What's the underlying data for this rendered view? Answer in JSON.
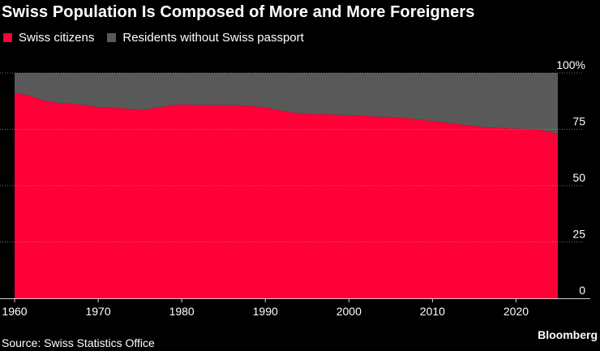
{
  "title": "Swiss Population Is Composed of More and More Foreigners",
  "legend": [
    {
      "label": "Swiss citizens",
      "color": "#ff0037"
    },
    {
      "label": "Residents without Swiss passport",
      "color": "#595959"
    }
  ],
  "source": "Source: Swiss Statistics Office",
  "brand": "Bloomberg",
  "chart_data": {
    "type": "area",
    "stacked": true,
    "title": "Swiss Population Is Composed of More and More Foreigners",
    "xlabel": "",
    "ylabel": "",
    "xlim": [
      1960,
      2025
    ],
    "ylim": [
      0,
      100
    ],
    "x_ticks": [
      1960,
      1970,
      1980,
      1990,
      2000,
      2010,
      2020
    ],
    "y_ticks": [
      0,
      25,
      50,
      75,
      100
    ],
    "y_tick_labels": [
      "0",
      "25",
      "50",
      "75",
      "100%"
    ],
    "y_axis_position": "right",
    "grid": "horizontal",
    "legend_position": "top-left",
    "x": [
      1960,
      1961,
      1962,
      1963,
      1964,
      1965,
      1966,
      1967,
      1968,
      1969,
      1970,
      1971,
      1972,
      1973,
      1974,
      1975,
      1976,
      1977,
      1978,
      1979,
      1980,
      1981,
      1982,
      1983,
      1984,
      1985,
      1986,
      1987,
      1988,
      1989,
      1990,
      1991,
      1992,
      1993,
      1994,
      1995,
      1996,
      1997,
      1998,
      1999,
      2000,
      2001,
      2002,
      2003,
      2004,
      2005,
      2006,
      2007,
      2008,
      2009,
      2010,
      2011,
      2012,
      2013,
      2014,
      2015,
      2016,
      2017,
      2018,
      2019,
      2020,
      2021,
      2022,
      2023,
      2024,
      2025
    ],
    "series": [
      {
        "name": "Swiss citizens",
        "color": "#ff0037",
        "values": [
          90.8,
          90.5,
          89.6,
          88.3,
          87.3,
          86.8,
          86.5,
          86.2,
          85.8,
          85.4,
          84.8,
          84.6,
          84.5,
          84.2,
          83.8,
          83.6,
          83.8,
          84.6,
          85.2,
          85.6,
          86.0,
          85.9,
          85.8,
          85.7,
          85.7,
          85.7,
          85.7,
          85.6,
          85.4,
          85.0,
          84.6,
          83.9,
          83.2,
          82.6,
          82.1,
          81.8,
          81.6,
          81.6,
          81.5,
          81.4,
          81.3,
          81.1,
          80.9,
          80.7,
          80.5,
          80.3,
          80.1,
          79.9,
          79.5,
          79.0,
          78.6,
          78.2,
          77.8,
          77.3,
          76.8,
          76.4,
          76.0,
          75.8,
          75.6,
          75.4,
          75.3,
          75.2,
          75.0,
          74.6,
          73.8,
          72.8
        ]
      },
      {
        "name": "Residents without Swiss passport",
        "color": "#595959",
        "values": [
          9.2,
          9.5,
          10.4,
          11.7,
          12.7,
          13.2,
          13.5,
          13.8,
          14.2,
          14.6,
          15.2,
          15.4,
          15.5,
          15.8,
          16.2,
          16.4,
          16.2,
          15.4,
          14.8,
          14.4,
          14.0,
          14.1,
          14.2,
          14.3,
          14.3,
          14.3,
          14.3,
          14.4,
          14.6,
          15.0,
          15.4,
          16.1,
          16.8,
          17.4,
          17.9,
          18.2,
          18.4,
          18.4,
          18.5,
          18.6,
          18.7,
          18.9,
          19.1,
          19.3,
          19.5,
          19.7,
          19.9,
          20.1,
          20.5,
          21.0,
          21.4,
          21.8,
          22.2,
          22.7,
          23.2,
          23.6,
          24.0,
          24.2,
          24.4,
          24.6,
          24.7,
          24.8,
          25.0,
          25.4,
          26.2,
          27.2
        ]
      }
    ]
  }
}
